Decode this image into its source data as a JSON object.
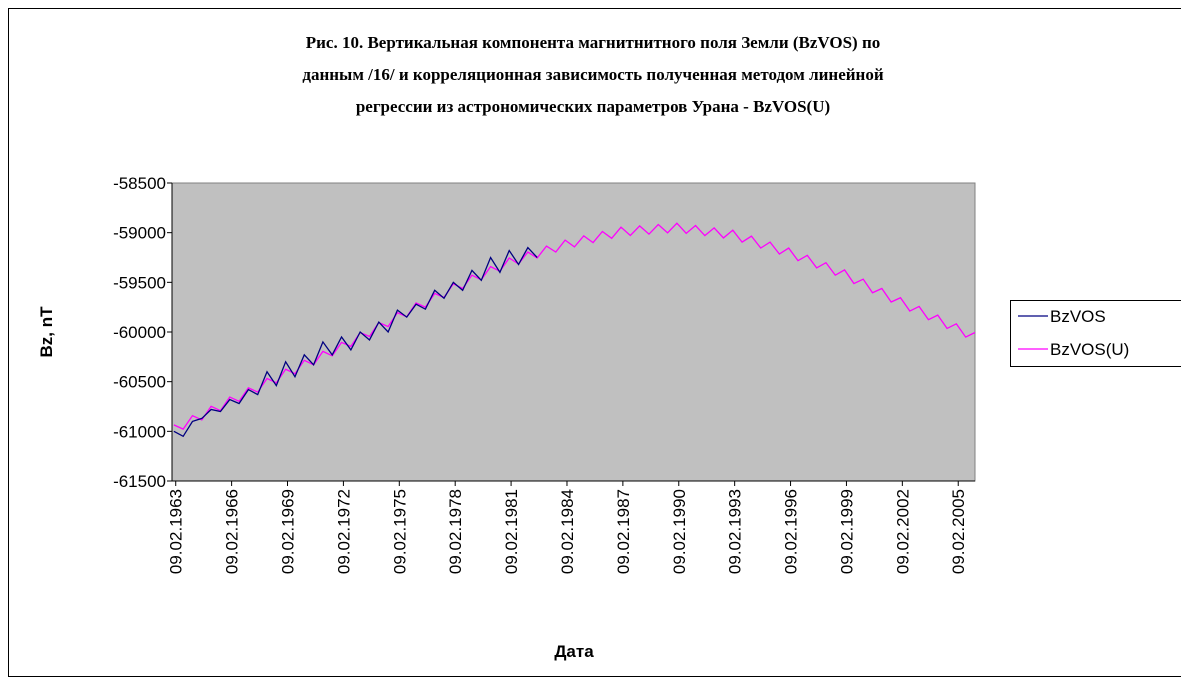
{
  "chart_data": {
    "type": "line",
    "title": [
      "Рис. 10. Вертикальная компонента магнитнитного поля Земли (BzVOS) по",
      "данным /16/ и корреляционная зависимость полученная методом линейной",
      "регрессии из астрономических параметров Урана  - BzVOS(U)"
    ],
    "x_label": "Дата",
    "y_label": "Bz, nT",
    "x": [
      1963.0,
      1963.5,
      1964.0,
      1964.5,
      1965.0,
      1965.5,
      1966.0,
      1966.5,
      1967.0,
      1967.5,
      1968.0,
      1968.5,
      1969.0,
      1969.5,
      1970.0,
      1970.5,
      1971.0,
      1971.5,
      1972.0,
      1972.5,
      1973.0,
      1973.5,
      1974.0,
      1974.5,
      1975.0,
      1975.5,
      1976.0,
      1976.5,
      1977.0,
      1977.5,
      1978.0,
      1978.5,
      1979.0,
      1979.5,
      1980.0,
      1980.5,
      1981.0,
      1981.5,
      1982.0,
      1982.5,
      1983.0,
      1983.5,
      1984.0,
      1984.5,
      1985.0,
      1985.5,
      1986.0,
      1986.5,
      1987.0,
      1987.5,
      1988.0,
      1988.5,
      1989.0,
      1989.5,
      1990.0,
      1990.5,
      1991.0,
      1991.5,
      1992.0,
      1992.5,
      1993.0,
      1993.5,
      1994.0,
      1994.5,
      1995.0,
      1995.5,
      1996.0,
      1996.5,
      1997.0,
      1997.5,
      1998.0,
      1998.5,
      1999.0,
      1999.5,
      2000.0,
      2000.5,
      2001.0,
      2001.5,
      2002.0,
      2002.5,
      2003.0,
      2003.5,
      2004.0,
      2004.5,
      2005.0,
      2005.5,
      2006.0
    ],
    "series": [
      {
        "name": "BzVOS",
        "color": "#000080",
        "values": [
          -61000,
          -61050,
          -60900,
          -60870,
          -60780,
          -60800,
          -60680,
          -60720,
          -60580,
          -60630,
          -60400,
          -60540,
          -60300,
          -60450,
          -60230,
          -60330,
          -60100,
          -60230,
          -60050,
          -60180,
          -60000,
          -60080,
          -59900,
          -60000,
          -59780,
          -59850,
          -59720,
          -59770,
          -59580,
          -59660,
          -59500,
          -59580,
          -59380,
          -59480,
          -59250,
          -59400,
          -59180,
          -59320,
          -59150,
          -59250,
          null,
          null,
          null,
          null,
          null,
          null,
          null,
          null,
          null,
          null,
          null,
          null,
          null,
          null,
          null,
          null,
          null,
          null,
          null,
          null,
          null,
          null,
          null,
          null,
          null,
          null,
          null,
          null,
          null,
          null,
          null,
          null,
          null,
          null,
          null,
          null,
          null,
          null,
          null,
          null,
          null,
          null,
          null,
          null,
          null,
          null,
          null
        ]
      },
      {
        "name": "BzVOS(U)",
        "color": "#ff00ff",
        "values": [
          -60935,
          -60978,
          -60842,
          -60885,
          -60748,
          -60792,
          -60655,
          -60698,
          -60562,
          -60605,
          -60468,
          -60512,
          -60375,
          -60420,
          -60285,
          -60330,
          -60195,
          -60240,
          -60105,
          -60145,
          -60005,
          -60045,
          -59905,
          -59945,
          -59805,
          -59847,
          -59708,
          -59750,
          -59612,
          -59653,
          -59515,
          -59562,
          -59428,
          -59475,
          -59342,
          -59388,
          -59255,
          -59315,
          -59195,
          -59255,
          -59135,
          -59195,
          -59075,
          -59143,
          -59032,
          -59100,
          -58988,
          -59057,
          -58945,
          -59028,
          -58932,
          -59015,
          -58918,
          -59002,
          -58905,
          -59007,
          -58928,
          -59030,
          -58952,
          -59053,
          -58975,
          -59095,
          -59035,
          -59155,
          -59095,
          -59215,
          -59155,
          -59282,
          -59228,
          -59355,
          -59302,
          -59428,
          -59375,
          -59512,
          -59468,
          -59605,
          -59562,
          -59698,
          -59655,
          -59789,
          -59743,
          -59876,
          -59830,
          -59964,
          -59918,
          -60051,
          -60005
        ]
      }
    ],
    "xlim": [
      1962.9,
      2006.0
    ],
    "xticks": [
      {
        "value": 1963.1,
        "label": "09.02.1963"
      },
      {
        "value": 1966.1,
        "label": "09.02.1966"
      },
      {
        "value": 1969.1,
        "label": "09.02.1969"
      },
      {
        "value": 1972.1,
        "label": "09.02.1972"
      },
      {
        "value": 1975.1,
        "label": "09.02.1975"
      },
      {
        "value": 1978.1,
        "label": "09.02.1978"
      },
      {
        "value": 1981.1,
        "label": "09.02.1981"
      },
      {
        "value": 1984.1,
        "label": "09.02.1984"
      },
      {
        "value": 1987.1,
        "label": "09.02.1987"
      },
      {
        "value": 1990.1,
        "label": "09.02.1990"
      },
      {
        "value": 1993.1,
        "label": "09.02.1993"
      },
      {
        "value": 1996.1,
        "label": "09.02.1996"
      },
      {
        "value": 1999.1,
        "label": "09.02.1999"
      },
      {
        "value": 2002.1,
        "label": "09.02.2002"
      },
      {
        "value": 2005.1,
        "label": "09.02.2005"
      }
    ],
    "ylim": [
      -61500,
      -58500
    ],
    "yticks": [
      -58500,
      -59000,
      -59500,
      -60000,
      -60500,
      -61000,
      -61500
    ],
    "grid": false,
    "legend": "right",
    "plot_background": "#c0c0c0"
  }
}
